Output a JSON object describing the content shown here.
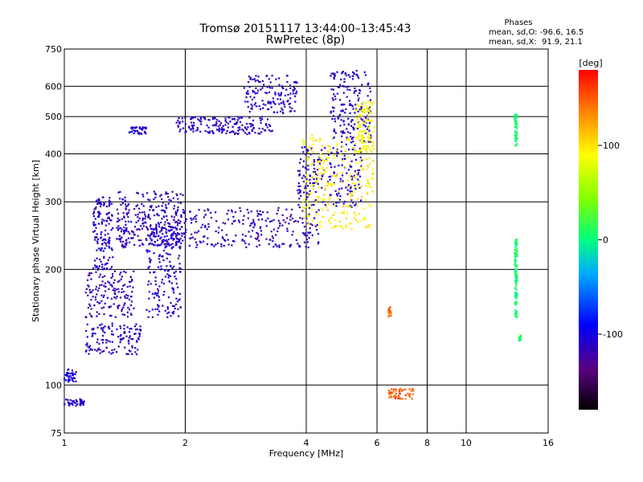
{
  "title_line1": "Tromsø 20151117 13:44:00–13:45:43",
  "title_line2": "RwPretec (8p)",
  "phases_box": {
    "heading": "Phases",
    "line1": "mean, sd,O: -96.6, 16.5",
    "line2": "mean, sd,X:  91.9, 21.1"
  },
  "colorbar": {
    "label": "[deg]",
    "range": [
      -180,
      180
    ],
    "ticks": [
      {
        "value": 100,
        "label": "100"
      },
      {
        "value": 0,
        "label": "0"
      },
      {
        "value": -100,
        "label": "-100"
      }
    ]
  },
  "chart_data": {
    "type": "scatter",
    "xlabel": "Frequency [MHz]",
    "ylabel": "Stationary phase Virtual Height [km]",
    "x_scale": "log",
    "y_scale": "log",
    "xlim": [
      1,
      16
    ],
    "ylim": [
      75,
      750
    ],
    "grid": true,
    "x_ticks": [
      {
        "value": 1,
        "label": "1"
      },
      {
        "value": 2,
        "label": "2"
      },
      {
        "value": 4,
        "label": "4"
      },
      {
        "value": 6,
        "label": "6"
      },
      {
        "value": 8,
        "label": "8"
      },
      {
        "value": 10,
        "label": "10"
      },
      {
        "value": 16,
        "label": "16"
      }
    ],
    "y_ticks": [
      {
        "value": 75,
        "label": "75"
      },
      {
        "value": 100,
        "label": "100"
      },
      {
        "value": 200,
        "label": "200"
      },
      {
        "value": 300,
        "label": "300"
      },
      {
        "value": 400,
        "label": "400"
      },
      {
        "value": 500,
        "label": "500"
      },
      {
        "value": 600,
        "label": "600"
      },
      {
        "value": 750,
        "label": "750"
      }
    ],
    "clusters": [
      {
        "x": [
          1.0,
          1.12
        ],
        "y": [
          88,
          92
        ],
        "phase": -110
      },
      {
        "x": [
          1.0,
          1.07
        ],
        "y": [
          102,
          110
        ],
        "phase": -105
      },
      {
        "x": [
          1.13,
          1.55
        ],
        "y": [
          120,
          145
        ],
        "phase": -112
      },
      {
        "x": [
          1.13,
          1.5
        ],
        "y": [
          150,
          200
        ],
        "phase": -115
      },
      {
        "x": [
          1.18,
          1.32
        ],
        "y": [
          200,
          310
        ],
        "phase": -110
      },
      {
        "x": [
          1.35,
          2.0
        ],
        "y": [
          230,
          320
        ],
        "phase": -112
      },
      {
        "x": [
          1.6,
          1.95
        ],
        "y": [
          150,
          260
        ],
        "phase": -108
      },
      {
        "x": [
          1.45,
          1.6
        ],
        "y": [
          450,
          470
        ],
        "phase": -105
      },
      {
        "x": [
          1.9,
          3.3
        ],
        "y": [
          450,
          500
        ],
        "phase": -112
      },
      {
        "x": [
          2.8,
          3.8
        ],
        "y": [
          510,
          640
        ],
        "phase": -110
      },
      {
        "x": [
          1.35,
          4.3
        ],
        "y": [
          228,
          290
        ],
        "phase": -115
      },
      {
        "x": [
          3.8,
          5.5
        ],
        "y": [
          290,
          420
        ],
        "phase": -110
      },
      {
        "x": [
          4.6,
          5.8
        ],
        "y": [
          420,
          660
        ],
        "phase": -108
      },
      {
        "x": [
          3.9,
          5.9
        ],
        "y": [
          255,
          450
        ],
        "phase": 95
      },
      {
        "x": [
          5.3,
          5.9
        ],
        "y": [
          400,
          550
        ],
        "phase": 90
      },
      {
        "x": [
          6.4,
          7.4
        ],
        "y": [
          92,
          98
        ],
        "phase": 150
      },
      {
        "x": [
          6.4,
          6.5
        ],
        "y": [
          150,
          160
        ],
        "phase": 150
      },
      {
        "x": [
          13.2,
          13.4
        ],
        "y": [
          420,
          510
        ],
        "phase": 5
      },
      {
        "x": [
          13.2,
          13.4
        ],
        "y": [
          150,
          240
        ],
        "phase": 5
      },
      {
        "x": [
          13.5,
          13.7
        ],
        "y": [
          130,
          135
        ],
        "phase": 5
      }
    ],
    "series_o_mean_phase": -96.6,
    "series_x_mean_phase": 91.9
  }
}
